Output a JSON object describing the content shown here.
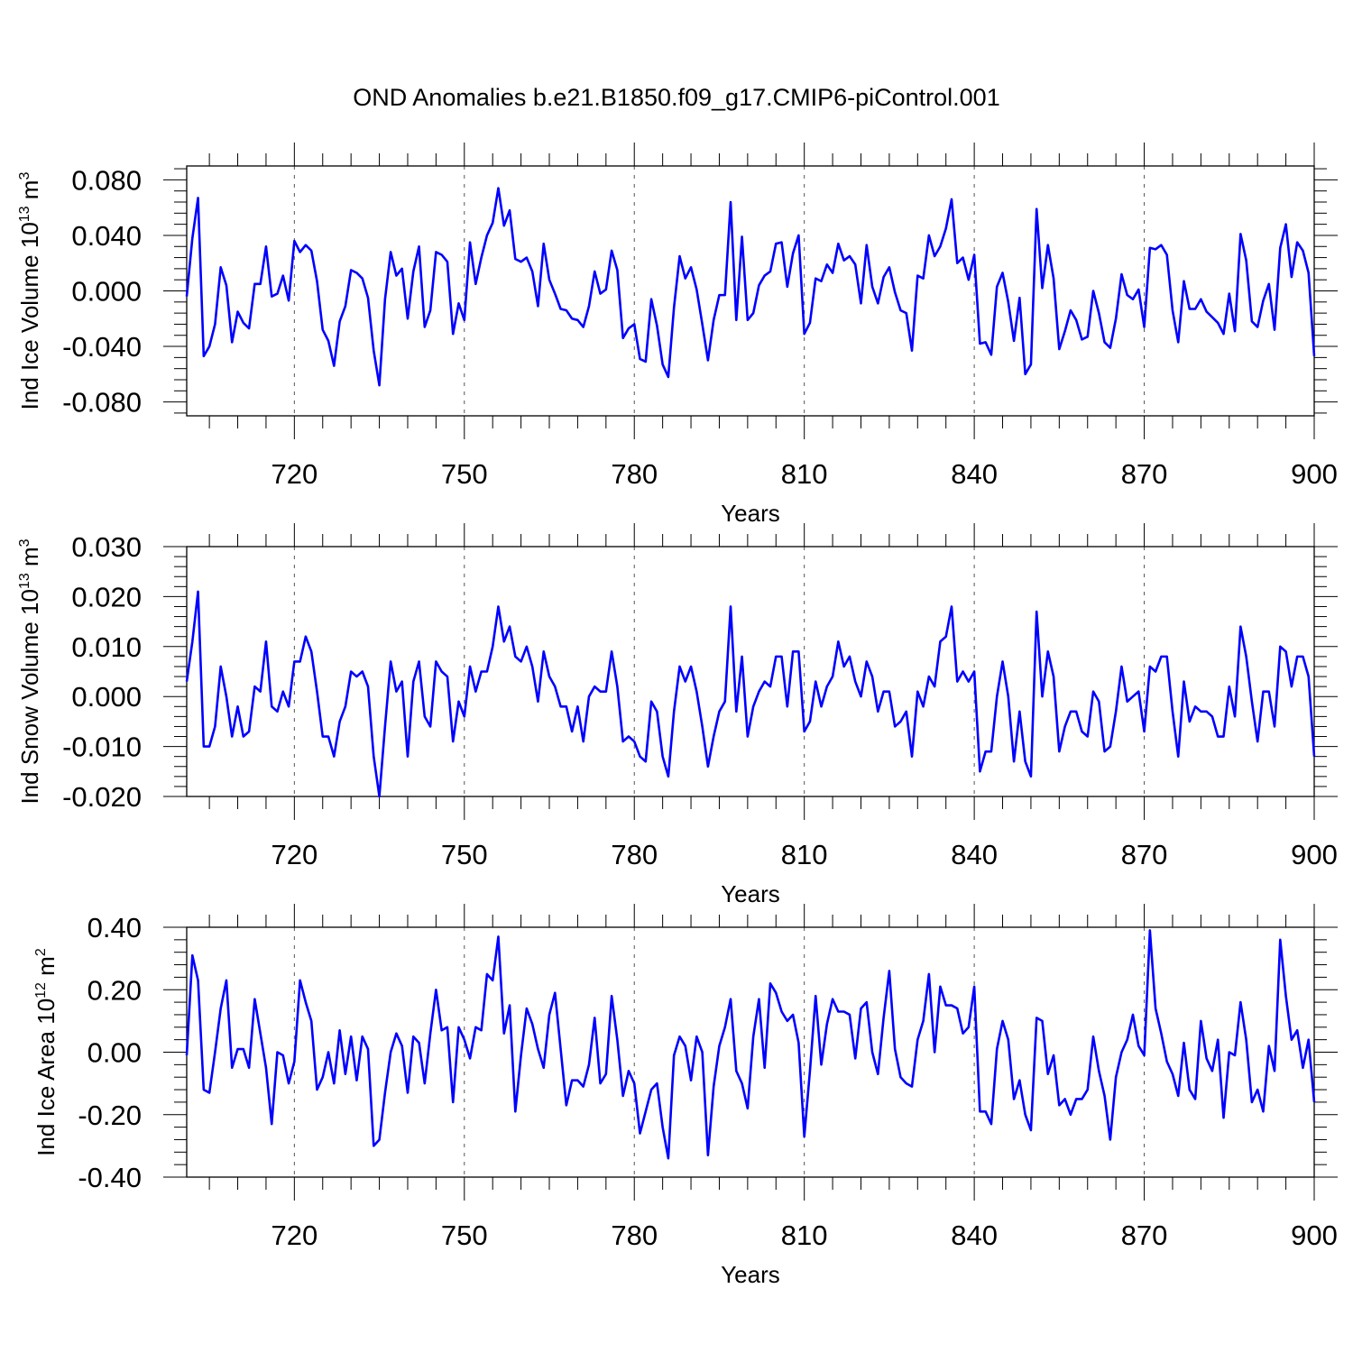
{
  "title": "OND Anomalies b.e21.B1850.f09_g17.CMIP6-piControl.001",
  "line_color": "#0000ff",
  "chart_data": [
    {
      "type": "line",
      "title": "OND Anomalies b.e21.B1850.f09_g17.CMIP6-piControl.001",
      "xlabel": "Years",
      "ylabel_main": "Ind Ice Volume 10",
      "ylabel_sup": "13",
      "ylabel_unit": " m",
      "ylabel_unit_sup": "3",
      "xlim": [
        701,
        900
      ],
      "ylim": [
        -0.09,
        0.09
      ],
      "xticks": [
        720,
        750,
        780,
        810,
        840,
        870,
        900
      ],
      "xtick_labels": [
        "720",
        "750",
        "780",
        "810",
        "840",
        "870",
        "900"
      ],
      "yticks": [
        -0.08,
        -0.04,
        0.0,
        0.04,
        0.08
      ],
      "ytick_labels": [
        "-0.080",
        "-0.040",
        "0.000",
        "0.040",
        "0.080"
      ],
      "x_start": 701,
      "values": [
        -0.004,
        0.038,
        0.067,
        -0.047,
        -0.04,
        -0.024,
        0.017,
        0.004,
        -0.037,
        -0.015,
        -0.023,
        -0.027,
        0.005,
        0.005,
        0.032,
        -0.004,
        -0.002,
        0.011,
        -0.007,
        0.036,
        0.028,
        0.033,
        0.029,
        0.007,
        -0.028,
        -0.036,
        -0.054,
        -0.022,
        -0.011,
        0.015,
        0.013,
        0.009,
        -0.005,
        -0.043,
        -0.068,
        -0.006,
        0.028,
        0.011,
        0.016,
        -0.02,
        0.014,
        0.032,
        -0.026,
        -0.014,
        0.028,
        0.026,
        0.021,
        -0.031,
        -0.009,
        -0.021,
        0.035,
        0.005,
        0.024,
        0.04,
        0.049,
        0.074,
        0.047,
        0.058,
        0.023,
        0.021,
        0.024,
        0.014,
        -0.011,
        0.034,
        0.008,
        -0.002,
        -0.013,
        -0.014,
        -0.02,
        -0.021,
        -0.026,
        -0.011,
        0.014,
        -0.002,
        0.001,
        0.029,
        0.015,
        -0.034,
        -0.027,
        -0.024,
        -0.049,
        -0.051,
        -0.006,
        -0.025,
        -0.053,
        -0.062,
        -0.012,
        0.025,
        0.009,
        0.017,
        0.001,
        -0.024,
        -0.05,
        -0.021,
        -0.003,
        -0.003,
        0.064,
        -0.021,
        0.039,
        -0.021,
        -0.016,
        0.004,
        0.011,
        0.014,
        0.034,
        0.035,
        0.003,
        0.027,
        0.04,
        -0.031,
        -0.023,
        0.009,
        0.007,
        0.019,
        0.013,
        0.034,
        0.022,
        0.025,
        0.019,
        -0.009,
        0.033,
        0.003,
        -0.009,
        0.01,
        0.017,
        -0.001,
        -0.014,
        -0.016,
        -0.043,
        0.011,
        0.009,
        0.04,
        0.025,
        0.032,
        0.045,
        0.066,
        0.02,
        0.024,
        0.008,
        0.026,
        -0.038,
        -0.037,
        -0.046,
        0.003,
        0.013,
        -0.008,
        -0.036,
        -0.005,
        -0.06,
        -0.053,
        0.059,
        0.002,
        0.033,
        0.009,
        -0.042,
        -0.029,
        -0.014,
        -0.021,
        -0.035,
        -0.033,
        0.0,
        -0.016,
        -0.037,
        -0.041,
        -0.02,
        0.012,
        -0.003,
        -0.006,
        0.001,
        -0.026,
        0.031,
        0.03,
        0.033,
        0.026,
        -0.014,
        -0.037,
        0.007,
        -0.013,
        -0.013,
        -0.006,
        -0.015,
        -0.019,
        -0.023,
        -0.031,
        -0.002,
        -0.029,
        0.041,
        0.022,
        -0.022,
        -0.026,
        -0.007,
        0.005,
        -0.028,
        0.031,
        0.048,
        0.01,
        0.035,
        0.029,
        0.013,
        -0.047
      ]
    },
    {
      "type": "line",
      "xlabel": "Years",
      "ylabel_main": "Ind Snow Volume 10",
      "ylabel_sup": "13",
      "ylabel_unit": " m",
      "ylabel_unit_sup": "3",
      "xlim": [
        701,
        900
      ],
      "ylim": [
        -0.02,
        0.03
      ],
      "xticks": [
        720,
        750,
        780,
        810,
        840,
        870,
        900
      ],
      "xtick_labels": [
        "720",
        "750",
        "780",
        "810",
        "840",
        "870",
        "900"
      ],
      "yticks": [
        -0.02,
        -0.01,
        0.0,
        0.01,
        0.02,
        0.03
      ],
      "ytick_labels": [
        "-0.020",
        "-0.010",
        "0.000",
        "0.010",
        "0.020",
        "0.030"
      ],
      "x_start": 701,
      "values": [
        0.003,
        0.011,
        0.021,
        -0.01,
        -0.01,
        -0.006,
        0.006,
        0.0,
        -0.008,
        -0.002,
        -0.008,
        -0.007,
        0.002,
        0.001,
        0.011,
        -0.002,
        -0.003,
        0.001,
        -0.002,
        0.007,
        0.007,
        0.012,
        0.009,
        0.001,
        -0.008,
        -0.008,
        -0.012,
        -0.005,
        -0.002,
        0.005,
        0.004,
        0.005,
        0.002,
        -0.012,
        -0.02,
        -0.006,
        0.007,
        0.001,
        0.003,
        -0.012,
        0.003,
        0.007,
        -0.004,
        -0.006,
        0.007,
        0.005,
        0.004,
        -0.009,
        -0.001,
        -0.004,
        0.006,
        0.001,
        0.005,
        0.005,
        0.01,
        0.018,
        0.011,
        0.014,
        0.008,
        0.007,
        0.01,
        0.006,
        -0.001,
        0.009,
        0.004,
        0.002,
        -0.002,
        -0.002,
        -0.007,
        -0.002,
        -0.009,
        0.0,
        0.002,
        0.001,
        0.001,
        0.009,
        0.002,
        -0.009,
        -0.008,
        -0.009,
        -0.012,
        -0.013,
        -0.001,
        -0.003,
        -0.012,
        -0.016,
        -0.003,
        0.006,
        0.003,
        0.006,
        0.001,
        -0.006,
        -0.014,
        -0.008,
        -0.003,
        -0.001,
        0.018,
        -0.003,
        0.008,
        -0.008,
        -0.002,
        0.001,
        0.003,
        0.002,
        0.008,
        0.008,
        -0.002,
        0.009,
        0.009,
        -0.007,
        -0.005,
        0.003,
        -0.002,
        0.002,
        0.004,
        0.011,
        0.006,
        0.008,
        0.003,
        0.0,
        0.007,
        0.004,
        -0.003,
        0.001,
        0.001,
        -0.006,
        -0.005,
        -0.003,
        -0.012,
        0.001,
        -0.002,
        0.004,
        0.002,
        0.011,
        0.012,
        0.018,
        0.003,
        0.005,
        0.003,
        0.005,
        -0.015,
        -0.011,
        -0.011,
        0.0,
        0.007,
        0.0,
        -0.013,
        -0.003,
        -0.013,
        -0.016,
        0.017,
        0.0,
        0.009,
        0.004,
        -0.011,
        -0.006,
        -0.003,
        -0.003,
        -0.007,
        -0.008,
        0.001,
        -0.001,
        -0.011,
        -0.01,
        -0.003,
        0.006,
        -0.001,
        0.0,
        0.001,
        -0.007,
        0.006,
        0.005,
        0.008,
        0.008,
        -0.003,
        -0.012,
        0.003,
        -0.005,
        -0.002,
        -0.003,
        -0.003,
        -0.004,
        -0.008,
        -0.008,
        0.002,
        -0.004,
        0.014,
        0.008,
        -0.001,
        -0.009,
        0.001,
        0.001,
        -0.006,
        0.01,
        0.009,
        0.002,
        0.008,
        0.008,
        0.004,
        -0.012
      ]
    },
    {
      "type": "line",
      "xlabel": "Years",
      "ylabel_main": "Ind Ice Area 10",
      "ylabel_sup": "12",
      "ylabel_unit": " m",
      "ylabel_unit_sup": "2",
      "xlim": [
        701,
        900
      ],
      "ylim": [
        -0.4,
        0.4
      ],
      "xticks": [
        720,
        750,
        780,
        810,
        840,
        870,
        900
      ],
      "xtick_labels": [
        "720",
        "750",
        "780",
        "810",
        "840",
        "870",
        "900"
      ],
      "yticks": [
        -0.4,
        -0.2,
        0.0,
        0.2,
        0.4
      ],
      "ytick_labels": [
        "-0.40",
        "-0.20",
        "0.00",
        "0.20",
        "0.40"
      ],
      "x_start": 701,
      "values": [
        -0.01,
        0.31,
        0.23,
        -0.12,
        -0.13,
        0.0,
        0.14,
        0.23,
        -0.05,
        0.01,
        0.01,
        -0.05,
        0.17,
        0.06,
        -0.05,
        -0.23,
        0.0,
        -0.01,
        -0.1,
        -0.03,
        0.23,
        0.16,
        0.1,
        -0.12,
        -0.08,
        0.0,
        -0.1,
        0.07,
        -0.07,
        0.05,
        -0.09,
        0.05,
        0.01,
        -0.3,
        -0.28,
        -0.13,
        0.0,
        0.06,
        0.02,
        -0.13,
        0.05,
        0.03,
        -0.1,
        0.06,
        0.2,
        0.07,
        0.08,
        -0.16,
        0.08,
        0.04,
        -0.02,
        0.08,
        0.07,
        0.25,
        0.23,
        0.37,
        0.06,
        0.15,
        -0.19,
        -0.01,
        0.14,
        0.09,
        0.01,
        -0.05,
        0.12,
        0.19,
        0.01,
        -0.17,
        -0.09,
        -0.09,
        -0.11,
        -0.04,
        0.11,
        -0.1,
        -0.07,
        0.18,
        0.04,
        -0.14,
        -0.06,
        -0.1,
        -0.26,
        -0.19,
        -0.12,
        -0.1,
        -0.24,
        -0.34,
        -0.01,
        0.05,
        0.02,
        -0.09,
        0.05,
        0.0,
        -0.33,
        -0.11,
        0.02,
        0.08,
        0.17,
        -0.06,
        -0.1,
        -0.18,
        0.05,
        0.17,
        -0.05,
        0.22,
        0.19,
        0.13,
        0.1,
        0.12,
        0.03,
        -0.27,
        -0.06,
        0.18,
        -0.04,
        0.09,
        0.17,
        0.13,
        0.13,
        0.12,
        -0.02,
        0.14,
        0.16,
        0.0,
        -0.07,
        0.11,
        0.26,
        0.01,
        -0.08,
        -0.1,
        -0.11,
        0.04,
        0.1,
        0.25,
        0.0,
        0.21,
        0.15,
        0.15,
        0.14,
        0.06,
        0.08,
        0.21,
        -0.19,
        -0.19,
        -0.23,
        0.01,
        0.1,
        0.04,
        -0.15,
        -0.09,
        -0.2,
        -0.25,
        0.11,
        0.1,
        -0.07,
        -0.01,
        -0.17,
        -0.15,
        -0.2,
        -0.15,
        -0.15,
        -0.12,
        0.05,
        -0.06,
        -0.14,
        -0.28,
        -0.08,
        0.0,
        0.04,
        0.12,
        0.02,
        -0.01,
        0.39,
        0.14,
        0.06,
        -0.03,
        -0.07,
        -0.14,
        0.03,
        -0.12,
        -0.15,
        0.1,
        -0.02,
        -0.06,
        0.04,
        -0.21,
        0.0,
        -0.01,
        0.16,
        0.04,
        -0.16,
        -0.12,
        -0.19,
        0.02,
        -0.06,
        0.36,
        0.18,
        0.04,
        0.07,
        -0.05,
        0.04,
        -0.16
      ]
    }
  ]
}
